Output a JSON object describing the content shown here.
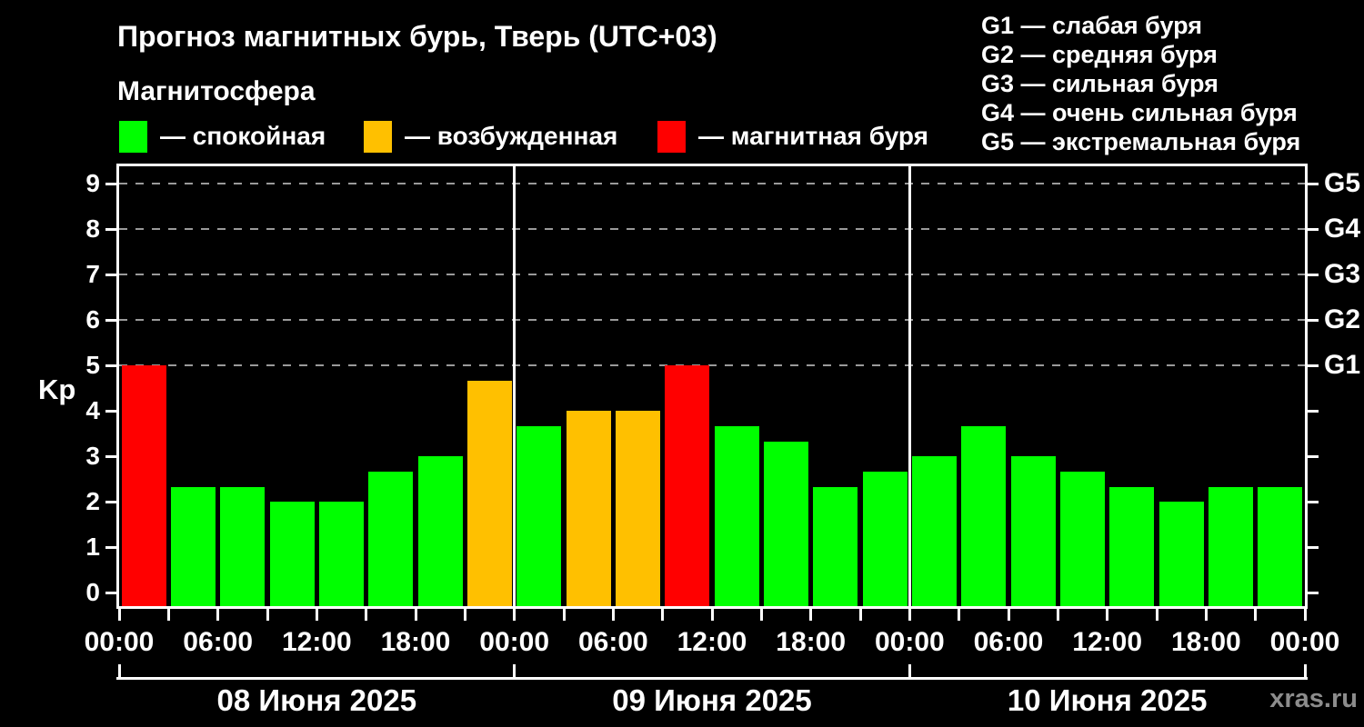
{
  "title": "Прогноз магнитных бурь, Тверь (UTC+03)",
  "subtitle": "Магнитосфера",
  "legend": {
    "items": [
      {
        "name": "quiet",
        "label": "— спокойная",
        "color": "#00ff00"
      },
      {
        "name": "excited",
        "label": "— возбужденная",
        "color": "#ffc000"
      },
      {
        "name": "storm",
        "label": "— магнитная буря",
        "color": "#ff0000"
      }
    ]
  },
  "storm_scale_legend": [
    "G1 — слабая буря",
    "G2 — средняя буря",
    "G3 — сильная буря",
    "G4 — очень сильная буря",
    "G5 — экстремальная буря"
  ],
  "watermark": "xras.ru",
  "chart_data": {
    "type": "bar",
    "title": "Прогноз магнитных бурь, Тверь (UTC+03)",
    "ylabel": "Kp",
    "ylim": [
      -0.3,
      9.38
    ],
    "y_ticks": [
      0,
      1,
      2,
      3,
      4,
      5,
      6,
      7,
      8,
      9
    ],
    "grid": "dashed horizontal lines at Kp 5..9 only",
    "gridline_levels": [
      5,
      6,
      7,
      8,
      9
    ],
    "right_axis_labels": [
      {
        "level": 5,
        "label": "G1"
      },
      {
        "level": 6,
        "label": "G2"
      },
      {
        "level": 7,
        "label": "G3"
      },
      {
        "level": 8,
        "label": "G4"
      },
      {
        "level": 9,
        "label": "G5"
      }
    ],
    "bar_interval_hours": 3,
    "x_tick_interval_hours": 3,
    "x_label_interval_hours": 6,
    "x_labels": [
      "00:00",
      "06:00",
      "12:00",
      "18:00",
      "00:00",
      "06:00",
      "12:00",
      "18:00",
      "00:00",
      "06:00",
      "12:00",
      "18:00",
      "00:00"
    ],
    "color_rule": {
      "storm_at_or_above": 5,
      "excited_at_or_above": 4
    },
    "colors": {
      "quiet": "#00ff00",
      "excited": "#ffc000",
      "storm": "#ff0000"
    },
    "days": [
      {
        "date_label": "08 Июня 2025",
        "values": [
          5,
          2.33,
          2.33,
          2,
          2,
          2.67,
          3,
          4.67
        ]
      },
      {
        "date_label": "09 Июня 2025",
        "values": [
          3.67,
          4,
          4,
          5,
          3.67,
          3.33,
          2.33,
          2.67
        ]
      },
      {
        "date_label": "10 Июня 2025",
        "values": [
          3,
          3.67,
          3,
          2.67,
          2.33,
          2,
          2.33,
          2.33
        ]
      }
    ]
  }
}
